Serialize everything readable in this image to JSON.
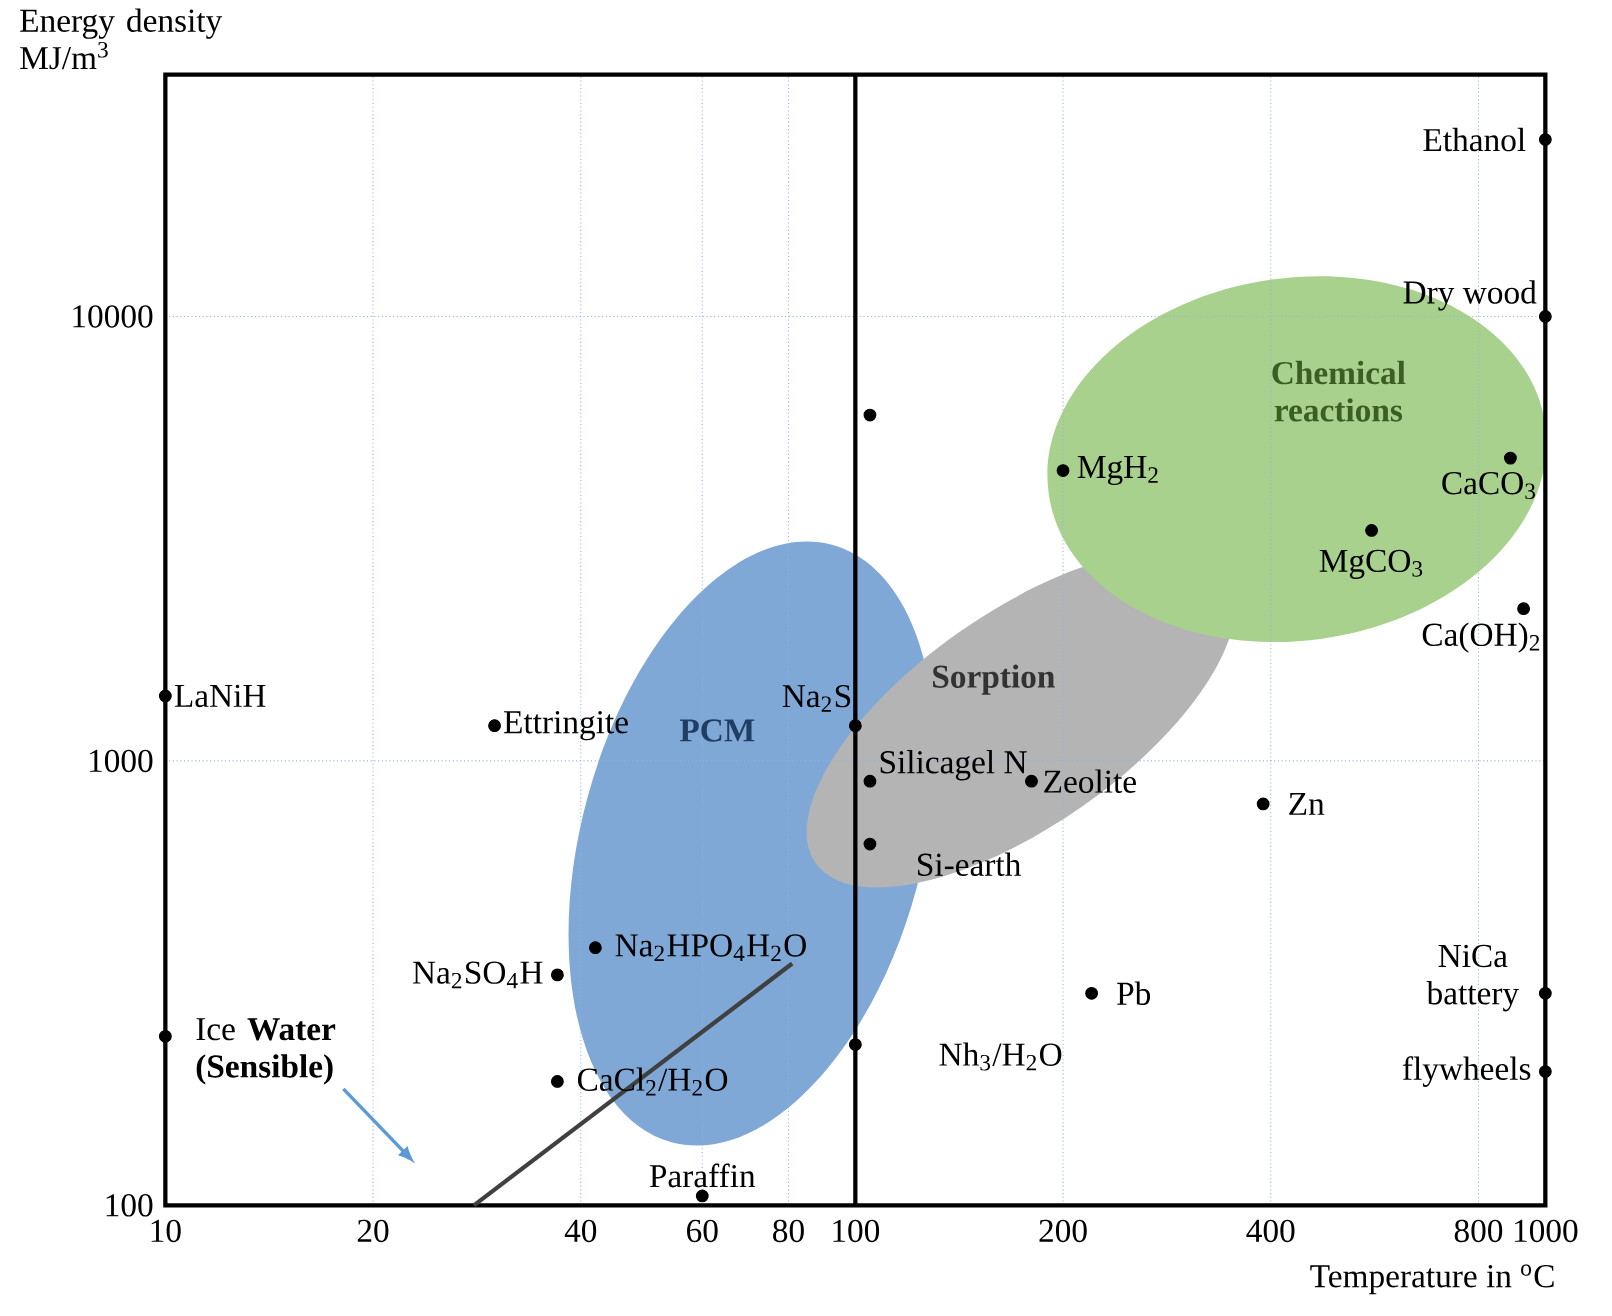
{
  "chart_data": {
    "type": "scatter",
    "xlabel": "Temperature in $^{o}$C",
    "ylabel": "Energy density MJ/m$^{3}$",
    "log": "xy",
    "grid": true,
    "marker": "circle",
    "xlim": [
      10,
      1000
    ],
    "ylim": [
      100,
      35000
    ],
    "xticks": [
      10,
      20,
      40,
      60,
      80,
      100,
      200,
      400,
      800,
      1000
    ],
    "yticks": [
      100,
      1000,
      10000
    ],
    "series": [
      {
        "color": "#000000",
        "x": [
          10,
          10,
          30,
          37,
          37,
          42,
          60,
          100,
          105,
          105,
          100,
          105,
          200,
          180,
          220,
          390,
          560,
          890,
          930,
          1000,
          1000,
          1000,
          1000
        ],
        "values": [
          1400,
          240,
          1200,
          330,
          190,
          380,
          105,
          1200,
          900,
          650,
          230,
          6000,
          4500,
          900,
          300,
          800,
          3300,
          4800,
          2200,
          25000,
          10000,
          300,
          200
        ]
      },
      {
        "type": "line",
        "color": "#404040",
        "marker": "none",
        "x": [
          28,
          81
        ],
        "values": [
          100,
          350
        ]
      }
    ],
    "ref_lines": [
      {
        "axis": "x",
        "value": 100,
        "color": "#000000"
      }
    ],
    "annotations": [
      "PCM",
      "Sorption",
      "Chemical reactions",
      {
        "text": "LaNiH",
        "x": 10,
        "y": 1400
      },
      {
        "text": "Ice **Water (Sensible)**",
        "x": 10,
        "y": 240
      },
      {
        "text": "Ettringite",
        "x": 30,
        "y": 1200
      },
      {
        "text": "Na$_{2}$SO$_{4}$H",
        "x": 37,
        "y": 330
      },
      {
        "text": "CaCl$_{2}$/H$_{2}$O",
        "x": 37,
        "y": 190
      },
      {
        "text": "Na$_{2}$HPO$_{4}$H$_{2}$O",
        "x": 42,
        "y": 380
      },
      {
        "text": "Paraffin",
        "x": 60,
        "y": 105
      },
      {
        "text": "Na$_{2}$S",
        "x": 100,
        "y": 1200
      },
      {
        "text": "Silicagel  N",
        "x": 105,
        "y": 900
      },
      {
        "text": "Si-earth",
        "x": 105,
        "y": 650
      },
      {
        "text": "Nh$_{3}$/H$_{2}$O",
        "x": 100,
        "y": 230
      },
      {
        "text": "MgH$_{2}$",
        "x": 200,
        "y": 4500
      },
      {
        "text": "Zeolite",
        "x": 180,
        "y": 900
      },
      {
        "text": "Pb",
        "x": 220,
        "y": 300
      },
      {
        "text": "Zn",
        "x": 390,
        "y": 800
      },
      {
        "text": "MgCO$_{3}$",
        "x": 560,
        "y": 3300
      },
      {
        "text": "CaCO$_{3}$",
        "x": 890,
        "y": 4800
      },
      {
        "text": "Ca(OH)$_{2}$",
        "x": 930,
        "y": 2200
      },
      {
        "text": "Ethanol",
        "x": 1000,
        "y": 25000
      },
      {
        "text": "Dry wood",
        "x": 1000,
        "y": 10000
      },
      {
        "text": "NiCa battery",
        "x": 1000,
        "y": 300
      },
      {
        "text": "flywheels",
        "x": 1000,
        "y": 200
      }
    ]
  }
}
